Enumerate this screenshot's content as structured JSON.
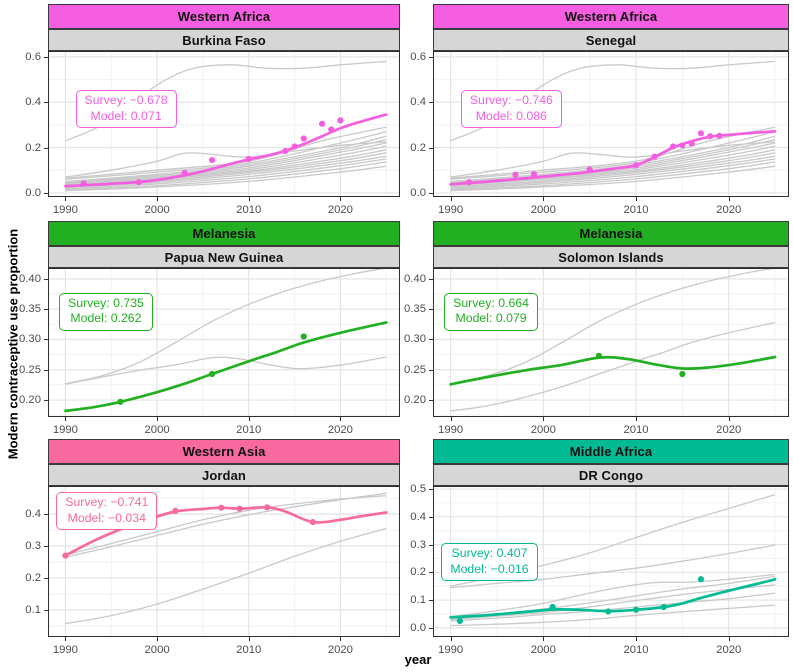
{
  "figure": {
    "y_axis_title": "Modern contraceptive use proportion",
    "x_axis_title": "year"
  },
  "colors": {
    "strip_country_bg": "#D6D6D6",
    "background_line": "#C9C9C9",
    "grid_major": "#E4E4E4",
    "grid_minor": "#F2F2F2",
    "panel_border": "#2E2E2E",
    "tick_label": "#4D4D4D",
    "western_africa_accent": "#F55EE0",
    "melanesia_accent": "#22B022",
    "western_asia_accent": "#F8699F",
    "middle_africa_accent": "#00BB94"
  },
  "background_sets": {
    "western_africa": [
      {
        "x": [
          1990,
          1994,
          1998,
          2001,
          2004,
          2008,
          2012,
          2016,
          2020,
          2025
        ],
        "y": [
          0.23,
          0.3,
          0.42,
          0.5,
          0.55,
          0.565,
          0.55,
          0.55,
          0.565,
          0.58
        ]
      },
      {
        "x": [
          1990,
          1995,
          2000,
          2003,
          2006,
          2010,
          2015,
          2020,
          2025
        ],
        "y": [
          0.07,
          0.1,
          0.14,
          0.175,
          0.17,
          0.158,
          0.185,
          0.21,
          0.225
        ]
      },
      {
        "x": [
          1990,
          2000,
          2010,
          2018,
          2025
        ],
        "y": [
          0.065,
          0.1,
          0.14,
          0.23,
          0.29
        ]
      },
      {
        "x": [
          1990,
          2000,
          2010,
          2020,
          2025
        ],
        "y": [
          0.06,
          0.092,
          0.132,
          0.22,
          0.27
        ]
      },
      {
        "x": [
          1990,
          2000,
          2010,
          2020,
          2025
        ],
        "y": [
          0.05,
          0.082,
          0.125,
          0.2,
          0.25
        ]
      },
      {
        "x": [
          1990,
          2000,
          2010,
          2020,
          2025
        ],
        "y": [
          0.046,
          0.076,
          0.118,
          0.19,
          0.235
        ]
      },
      {
        "x": [
          1990,
          2000,
          2010,
          2020,
          2025
        ],
        "y": [
          0.042,
          0.07,
          0.11,
          0.18,
          0.22
        ]
      },
      {
        "x": [
          1990,
          2000,
          2010,
          2020,
          2025
        ],
        "y": [
          0.037,
          0.065,
          0.103,
          0.167,
          0.206
        ]
      },
      {
        "x": [
          1990,
          2000,
          2010,
          2020,
          2025
        ],
        "y": [
          0.032,
          0.06,
          0.096,
          0.153,
          0.19
        ]
      },
      {
        "x": [
          1990,
          2000,
          2010,
          2020,
          2025
        ],
        "y": [
          0.027,
          0.053,
          0.09,
          0.142,
          0.177
        ]
      },
      {
        "x": [
          1990,
          2000,
          2010,
          2020,
          2025
        ],
        "y": [
          0.022,
          0.047,
          0.082,
          0.131,
          0.162
        ]
      },
      {
        "x": [
          1990,
          2000,
          2010,
          2020,
          2025
        ],
        "y": [
          0.017,
          0.04,
          0.072,
          0.12,
          0.15
        ]
      },
      {
        "x": [
          1990,
          2000,
          2010,
          2020,
          2025
        ],
        "y": [
          0.012,
          0.032,
          0.062,
          0.107,
          0.137
        ]
      },
      {
        "x": [
          1990,
          2000,
          2010,
          2020,
          2025
        ],
        "y": [
          0.01,
          0.026,
          0.051,
          0.092,
          0.118
        ]
      }
    ],
    "melanesia_png_view": [
      {
        "x": [
          1990,
          1994,
          1998,
          2002,
          2006,
          2010,
          2014,
          2018,
          2022,
          2025
        ],
        "y": [
          0.227,
          0.24,
          0.262,
          0.295,
          0.33,
          0.358,
          0.38,
          0.397,
          0.41,
          0.418
        ]
      },
      {
        "x": [
          1990,
          1994,
          1998,
          2002,
          2006,
          2009,
          2012,
          2015,
          2018,
          2021,
          2025
        ],
        "y": [
          0.226,
          0.238,
          0.249,
          0.258,
          0.27,
          0.268,
          0.259,
          0.252,
          0.254,
          0.26,
          0.271
        ]
      }
    ],
    "melanesia_sol_view": [
      {
        "x": [
          1990,
          1994,
          1998,
          2002,
          2006,
          2010,
          2014,
          2018,
          2022,
          2025
        ],
        "y": [
          0.227,
          0.24,
          0.262,
          0.295,
          0.33,
          0.358,
          0.38,
          0.397,
          0.41,
          0.418
        ]
      },
      {
        "x": [
          1990,
          1993,
          1996,
          2000,
          2003,
          2006,
          2010,
          2013,
          2016,
          2020,
          2025
        ],
        "y": [
          0.182,
          0.188,
          0.197,
          0.213,
          0.227,
          0.243,
          0.264,
          0.279,
          0.295,
          0.311,
          0.328
        ]
      }
    ],
    "western_asia": [
      {
        "x": [
          1990,
          1995,
          2000,
          2005,
          2010,
          2015,
          2020,
          2025
        ],
        "y": [
          0.265,
          0.298,
          0.333,
          0.368,
          0.398,
          0.423,
          0.445,
          0.465
        ]
      },
      {
        "x": [
          1990,
          1995,
          2000,
          2005,
          2010,
          2015,
          2020,
          2025
        ],
        "y": [
          0.272,
          0.308,
          0.345,
          0.382,
          0.412,
          0.432,
          0.447,
          0.458
        ]
      },
      {
        "x": [
          1990,
          1995,
          2000,
          2005,
          2010,
          2015,
          2020,
          2025
        ],
        "y": [
          0.057,
          0.082,
          0.118,
          0.165,
          0.215,
          0.268,
          0.315,
          0.355
        ]
      }
    ],
    "middle_africa": [
      {
        "x": [
          1990,
          1995,
          2000,
          2005,
          2010,
          2015,
          2020,
          2025
        ],
        "y": [
          0.15,
          0.185,
          0.225,
          0.27,
          0.325,
          0.38,
          0.43,
          0.48
        ]
      },
      {
        "x": [
          1990,
          1995,
          2000,
          2005,
          2010,
          2015,
          2020,
          2025
        ],
        "y": [
          0.145,
          0.16,
          0.175,
          0.195,
          0.215,
          0.24,
          0.268,
          0.298
        ]
      },
      {
        "x": [
          1990,
          1995,
          2000,
          2004,
          2008,
          2012,
          2016,
          2020,
          2025
        ],
        "y": [
          0.04,
          0.062,
          0.088,
          0.118,
          0.145,
          0.163,
          0.165,
          0.175,
          0.192
        ]
      },
      {
        "x": [
          1990,
          1995,
          2000,
          2005,
          2010,
          2015,
          2020,
          2025
        ],
        "y": [
          0.035,
          0.05,
          0.068,
          0.09,
          0.115,
          0.14,
          0.16,
          0.185
        ]
      },
      {
        "x": [
          1990,
          1995,
          2000,
          2005,
          2010,
          2015,
          2020,
          2025
        ],
        "y": [
          0.03,
          0.042,
          0.055,
          0.075,
          0.098,
          0.12,
          0.138,
          0.155
        ]
      },
      {
        "x": [
          1990,
          1995,
          2000,
          2005,
          2010,
          2015,
          2020,
          2025
        ],
        "y": [
          0.025,
          0.035,
          0.048,
          0.06,
          0.075,
          0.09,
          0.105,
          0.125
        ]
      },
      {
        "x": [
          1990,
          1995,
          2000,
          2005,
          2010,
          2015,
          2020,
          2025
        ],
        "y": [
          0.008,
          0.013,
          0.02,
          0.03,
          0.045,
          0.058,
          0.07,
          0.082
        ]
      }
    ]
  },
  "chart_data": [
    {
      "type": "line",
      "region": "Western Africa",
      "country": "Burkina Faso",
      "accent": "#F55EE0",
      "annotation": {
        "survey": "Survey: −0.678",
        "model": "Model: 0.071",
        "anchor_x": 1991.1,
        "anchor_y": 0.452
      },
      "xlim": [
        1988.1,
        2026.5
      ],
      "ylim": [
        -0.018,
        0.626
      ],
      "xticks": [
        1990,
        2000,
        2010,
        2020
      ],
      "xtick_labels": [
        "1990",
        "2000",
        "2010",
        "2020"
      ],
      "yticks": [
        0.0,
        0.2,
        0.4,
        0.6
      ],
      "ytick_labels": [
        "0.0",
        "0.2",
        "0.4",
        "0.6"
      ],
      "background_set": "western_africa",
      "model_line": {
        "x": [
          1990,
          1992,
          1994,
          1996,
          1998,
          2000,
          2002,
          2004,
          2006,
          2008,
          2010,
          2012,
          2014,
          2016,
          2018,
          2020,
          2022,
          2025
        ],
        "y": [
          0.03,
          0.034,
          0.038,
          0.043,
          0.048,
          0.057,
          0.07,
          0.086,
          0.106,
          0.128,
          0.148,
          0.164,
          0.186,
          0.216,
          0.25,
          0.285,
          0.312,
          0.346
        ]
      },
      "survey_points": {
        "x": [
          1992,
          1998,
          2003,
          2006,
          2010,
          2014,
          2015,
          2016,
          2018,
          2019,
          2020
        ],
        "y": [
          0.041,
          0.047,
          0.088,
          0.145,
          0.15,
          0.185,
          0.205,
          0.24,
          0.305,
          0.28,
          0.32
        ]
      }
    },
    {
      "type": "line",
      "region": "Western Africa",
      "country": "Senegal",
      "accent": "#F55EE0",
      "annotation": {
        "survey": "Survey: −0.746",
        "model": "Model: 0.086",
        "anchor_x": 1991.1,
        "anchor_y": 0.452
      },
      "xlim": [
        1988.1,
        2026.5
      ],
      "ylim": [
        -0.018,
        0.626
      ],
      "xticks": [
        1990,
        2000,
        2010,
        2020
      ],
      "xtick_labels": [
        "1990",
        "2000",
        "2010",
        "2020"
      ],
      "yticks": [
        0.0,
        0.2,
        0.4,
        0.6
      ],
      "ytick_labels": [
        "0.0",
        "0.2",
        "0.4",
        "0.6"
      ],
      "background_set": "western_africa",
      "model_line": {
        "x": [
          1990,
          1992,
          1994,
          1996,
          1998,
          2000,
          2002,
          2004,
          2006,
          2008,
          2010,
          2012,
          2014,
          2016,
          2018,
          2020,
          2022,
          2025
        ],
        "y": [
          0.038,
          0.044,
          0.05,
          0.057,
          0.064,
          0.072,
          0.08,
          0.088,
          0.098,
          0.109,
          0.122,
          0.158,
          0.2,
          0.228,
          0.248,
          0.256,
          0.263,
          0.272
        ]
      },
      "survey_points": {
        "x": [
          1992,
          1997,
          1999,
          2005,
          2010,
          2012,
          2014,
          2015,
          2016,
          2017,
          2018,
          2019
        ],
        "y": [
          0.047,
          0.08,
          0.082,
          0.103,
          0.122,
          0.16,
          0.205,
          0.21,
          0.218,
          0.263,
          0.25,
          0.252
        ]
      }
    },
    {
      "type": "line",
      "region": "Melanesia",
      "country": "Papua New Guinea",
      "accent": "#22B022",
      "annotation": {
        "survey": "Survey: 0.735",
        "model": "Model: 0.262",
        "anchor_x": 1989.3,
        "anchor_y": 0.377
      },
      "xlim": [
        1988.1,
        2026.5
      ],
      "ylim": [
        0.172,
        0.418
      ],
      "xticks": [
        1990,
        2000,
        2010,
        2020
      ],
      "xtick_labels": [
        "1990",
        "2000",
        "2010",
        "2020"
      ],
      "yticks": [
        0.2,
        0.25,
        0.3,
        0.35,
        0.4
      ],
      "ytick_labels": [
        "0.20",
        "0.25",
        "0.30",
        "0.35",
        "0.40"
      ],
      "background_set": "melanesia_png_view",
      "model_line": {
        "x": [
          1990,
          1993,
          1996,
          2000,
          2003,
          2006,
          2010,
          2013,
          2016,
          2020,
          2025
        ],
        "y": [
          0.182,
          0.188,
          0.197,
          0.213,
          0.227,
          0.243,
          0.264,
          0.279,
          0.295,
          0.311,
          0.328
        ]
      },
      "survey_points": {
        "x": [
          1996,
          2006,
          2016
        ],
        "y": [
          0.197,
          0.243,
          0.305
        ]
      }
    },
    {
      "type": "line",
      "region": "Melanesia",
      "country": "Solomon Islands",
      "accent": "#22B022",
      "annotation": {
        "survey": "Survey: 0.664",
        "model": "Model: 0.079",
        "anchor_x": 1989.3,
        "anchor_y": 0.377
      },
      "xlim": [
        1988.1,
        2026.5
      ],
      "ylim": [
        0.172,
        0.418
      ],
      "xticks": [
        1990,
        2000,
        2010,
        2020
      ],
      "xtick_labels": [
        "1990",
        "2000",
        "2010",
        "2020"
      ],
      "yticks": [
        0.2,
        0.25,
        0.3,
        0.35,
        0.4
      ],
      "ytick_labels": [
        "0.20",
        "0.25",
        "0.30",
        "0.35",
        "0.40"
      ],
      "background_set": "melanesia_sol_view",
      "model_line": {
        "x": [
          1990,
          1994,
          1998,
          2002,
          2006,
          2009,
          2012,
          2015,
          2018,
          2021,
          2025
        ],
        "y": [
          0.226,
          0.238,
          0.249,
          0.258,
          0.27,
          0.268,
          0.259,
          0.252,
          0.254,
          0.26,
          0.271
        ]
      },
      "survey_points": {
        "x": [
          2006,
          2015
        ],
        "y": [
          0.273,
          0.243
        ]
      }
    },
    {
      "type": "line",
      "region": "Western Asia",
      "country": "Jordan",
      "accent": "#F8699F",
      "annotation": {
        "survey": "Survey: −0.741",
        "model": "Model: −0.034",
        "anchor_x": 1989.0,
        "anchor_y": 0.469
      },
      "xlim": [
        1988.1,
        2026.5
      ],
      "ylim": [
        0.015,
        0.488
      ],
      "xticks": [
        1990,
        2000,
        2010,
        2020
      ],
      "xtick_labels": [
        "1990",
        "2000",
        "2010",
        "2020"
      ],
      "yticks": [
        0.1,
        0.2,
        0.3,
        0.4
      ],
      "ytick_labels": [
        "0.1",
        "0.2",
        "0.3",
        "0.4"
      ],
      "background_set": "western_asia",
      "model_line": {
        "x": [
          1990,
          1993,
          1996,
          1999,
          2002,
          2005,
          2007,
          2009,
          2012,
          2014,
          2017,
          2020,
          2022,
          2025
        ],
        "y": [
          0.27,
          0.315,
          0.352,
          0.383,
          0.408,
          0.416,
          0.42,
          0.417,
          0.421,
          0.408,
          0.375,
          0.382,
          0.392,
          0.405
        ]
      },
      "survey_points": {
        "x": [
          1990,
          2002,
          2007,
          2009,
          2012,
          2017
        ],
        "y": [
          0.27,
          0.41,
          0.42,
          0.417,
          0.421,
          0.375
        ]
      }
    },
    {
      "type": "line",
      "region": "Middle Africa",
      "country": "DR Congo",
      "accent": "#00BB94",
      "annotation": {
        "survey": "Survey: 0.407",
        "model": "Model: −0.016",
        "anchor_x": 1989.0,
        "anchor_y": 0.304
      },
      "xlim": [
        1988.1,
        2026.5
      ],
      "ylim": [
        -0.033,
        0.511
      ],
      "xticks": [
        1990,
        2000,
        2010,
        2020
      ],
      "xtick_labels": [
        "1990",
        "2000",
        "2010",
        "2020"
      ],
      "yticks": [
        0.0,
        0.1,
        0.2,
        0.3,
        0.4,
        0.5
      ],
      "ytick_labels": [
        "0.0",
        "0.1",
        "0.2",
        "0.3",
        "0.4",
        "0.5"
      ],
      "background_set": "middle_africa",
      "model_line": {
        "x": [
          1990,
          1994,
          1998,
          2001,
          2004,
          2007,
          2010,
          2013,
          2015,
          2017,
          2019,
          2021,
          2023,
          2025
        ],
        "y": [
          0.038,
          0.046,
          0.057,
          0.066,
          0.065,
          0.06,
          0.065,
          0.075,
          0.088,
          0.108,
          0.125,
          0.142,
          0.158,
          0.175
        ]
      },
      "survey_points": {
        "x": [
          1991,
          2001,
          2007,
          2010,
          2013,
          2017
        ],
        "y": [
          0.025,
          0.075,
          0.059,
          0.065,
          0.075,
          0.175
        ]
      }
    }
  ]
}
